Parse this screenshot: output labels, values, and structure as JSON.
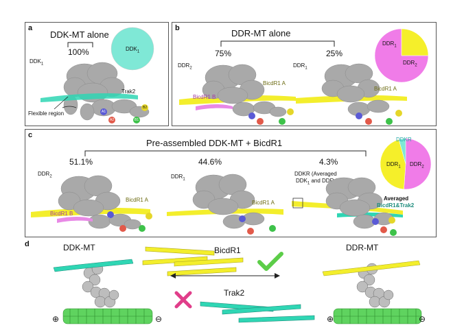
{
  "panel_a": {
    "label": "a",
    "title": "DDK-MT alone",
    "percent": "100%",
    "complex_label": "DDK",
    "complex_sub": "1",
    "pie_label": "DDK",
    "pie_label_sub": "1",
    "trak_label": "Trak2",
    "flex_label": "Flexible region",
    "beads": [
      "A1",
      "A2",
      "B1",
      "B2"
    ],
    "pie": [
      {
        "name": "DDK1",
        "fraction": 1.0,
        "color": "#7fe8d6"
      }
    ]
  },
  "panel_b": {
    "label": "b",
    "title": "DDR-MT alone",
    "left_percent": "75%",
    "right_percent": "25%",
    "left_complex": "DDR",
    "left_complex_sub": "2",
    "right_complex": "DDR",
    "right_complex_sub": "1",
    "left_bicd_a": "BicdR1 A",
    "left_bicd_b": "BicdR1 B",
    "right_bicd_a": "BicdR1 A",
    "pie_ddr1": "DDR",
    "pie_ddr1_sub": "1",
    "pie_ddr2": "DDR",
    "pie_ddr2_sub": "2",
    "pie": [
      {
        "name": "DDR2",
        "fraction": 0.75,
        "color": "#f07ce8"
      },
      {
        "name": "DDR1",
        "fraction": 0.25,
        "color": "#f5ef2a"
      }
    ]
  },
  "panel_c": {
    "label": "c",
    "title": "Pre-assembled DDK-MT  +  BicdR1",
    "p1": "51.1%",
    "p2": "44.6%",
    "p3": "4.3%",
    "c1": "DDR",
    "c1_sub": "2",
    "c2": "DDR",
    "c2_sub": "1",
    "ddkr_note_1": "DDKR (Averaged",
    "ddkr_note_2a": "DDK",
    "ddkr_note_2a_sub": "1",
    "ddkr_note_2b": " and DDR",
    "ddkr_note_2b_sub": "1",
    "ddkr_note_2c": ")",
    "bicd_a_1": "BicdR1 A",
    "bicd_b_1": "BicdR1 B",
    "bicd_a_2": "BicdR1 A",
    "averaged_1": "Averaged",
    "averaged_2": "BicdR1&Trak2",
    "pie_top": "DDKR",
    "pie_ddr1": "DDR",
    "pie_ddr1_sub": "1",
    "pie_ddr2": "DDR",
    "pie_ddr2_sub": "2",
    "pie": [
      {
        "name": "DDR2",
        "fraction": 0.511,
        "color": "#f07ce8"
      },
      {
        "name": "DDR1",
        "fraction": 0.446,
        "color": "#f5ef2a"
      },
      {
        "name": "DDKR",
        "fraction": 0.043,
        "color": "#7fe8d6"
      }
    ]
  },
  "panel_d": {
    "label": "d",
    "left_title": "DDK-MT",
    "right_title": "DDR-MT",
    "bicd_label": "BicdR1",
    "trak_label": "Trak2",
    "plus": "⊕",
    "minus": "⊖"
  },
  "colors": {
    "trak": "#2fd6b4",
    "bicd": "#f3ee2c",
    "bicd_b": "#e889e6",
    "density": "#a9a9a9",
    "mt": "#5fd35f",
    "check": "#5ccd48",
    "cross": "#e03e8a"
  }
}
